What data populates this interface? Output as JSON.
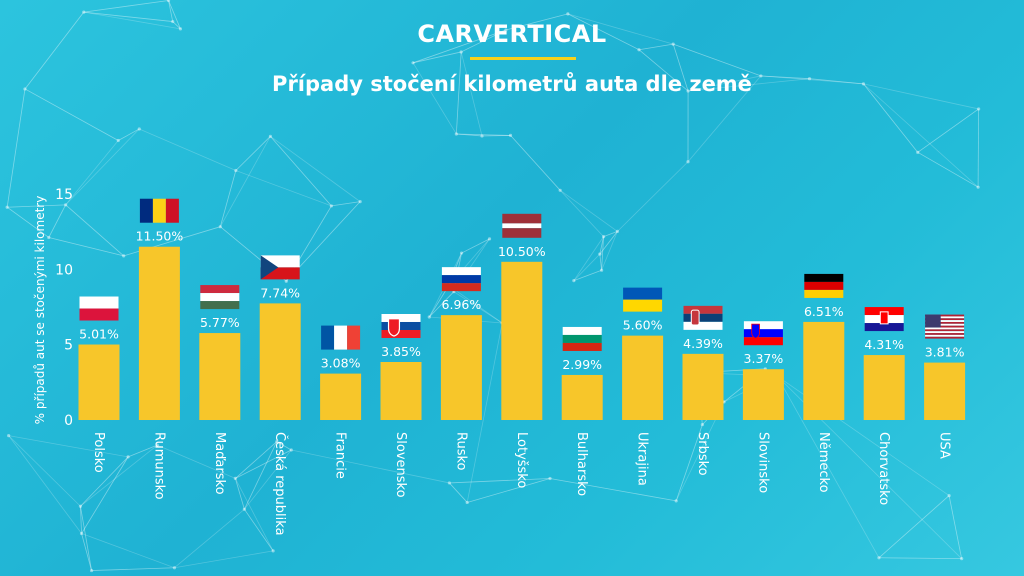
{
  "header": {
    "logo_text": "CARVERTICAL",
    "title": "Případy stočení kilometrů auta dle země"
  },
  "colors": {
    "background": "#22b8d6",
    "bar": "#f7c62a",
    "accent": "#f7d21a",
    "text": "#ffffff"
  },
  "chart_data": {
    "type": "bar",
    "title": "Případy stočení kilometrů auta dle země",
    "ylabel": "% případů aut se stočenými kilometry",
    "xlabel": "",
    "ylim": [
      0,
      15
    ],
    "yticks": [
      0,
      5,
      10,
      15
    ],
    "grid": false,
    "categories": [
      "Polsko",
      "Rumunsko",
      "Maďarsko",
      "Česká republika",
      "Francie",
      "Slovensko",
      "Rusko",
      "Lotyšsko",
      "Bulharsko",
      "Ukrajina",
      "Srbsko",
      "Slovinsko",
      "Německo",
      "Chorvatsko",
      "USA"
    ],
    "values": [
      5.01,
      11.5,
      5.77,
      7.74,
      3.08,
      3.85,
      6.96,
      10.5,
      2.99,
      5.6,
      4.39,
      3.37,
      6.51,
      4.31,
      3.81
    ],
    "value_labels": [
      "5.01%",
      "11.50%",
      "5.77%",
      "7.74%",
      "3.08%",
      "3.85%",
      "6.96%",
      "10.50%",
      "2.99%",
      "5.60%",
      "4.39%",
      "3.37%",
      "6.51%",
      "4.31%",
      "3.81%"
    ],
    "flags": [
      "poland-flag-icon",
      "romania-flag-icon",
      "hungary-flag-icon",
      "czech-flag-icon",
      "france-flag-icon",
      "slovakia-flag-icon",
      "russia-flag-icon",
      "latvia-flag-icon",
      "bulgaria-flag-icon",
      "ukraine-flag-icon",
      "serbia-flag-icon",
      "slovenia-flag-icon",
      "germany-flag-icon",
      "croatia-flag-icon",
      "usa-flag-icon"
    ]
  }
}
